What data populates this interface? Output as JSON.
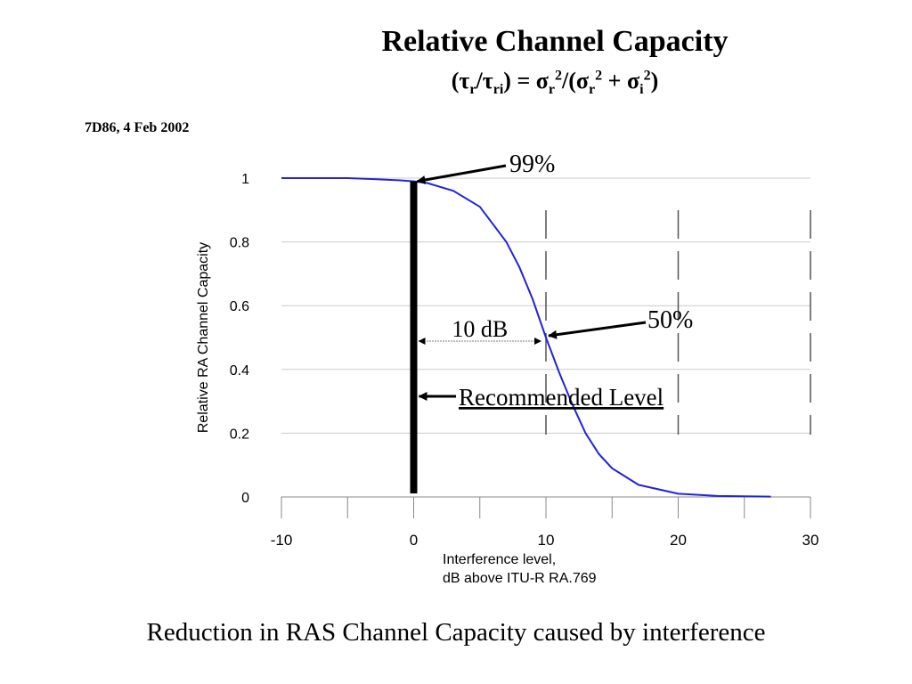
{
  "slide": {
    "title": "Relative Channel Capacity",
    "formula": {
      "parts": [
        "(τ",
        "r",
        "/τ",
        "ri",
        ") = σ",
        "r",
        "2",
        "/(σ",
        "r",
        "2",
        " + σ",
        "i",
        "2",
        ")"
      ]
    },
    "date_label": "7D86, 4 Feb 2002",
    "caption": "Reduction in RAS Channel Capacity caused by interference"
  },
  "chart_data": {
    "type": "line",
    "title": "",
    "xlabel_lines": [
      "Interference level,",
      "dB above ITU-R RA.769"
    ],
    "ylabel": "Relative RA Channel Capacity",
    "xlim": [
      -10,
      30
    ],
    "ylim": [
      0,
      1
    ],
    "x_ticks": [
      -10,
      0,
      10,
      20,
      30
    ],
    "x_tick_labels": [
      "-10",
      "0",
      "10",
      "20",
      "30"
    ],
    "x_minor_ticks": [
      -5,
      5,
      15,
      25
    ],
    "y_ticks": [
      0,
      0.2,
      0.4,
      0.6,
      0.8,
      1
    ],
    "y_tick_labels": [
      "0",
      "0.2",
      "0.4",
      "0.6",
      "0.8",
      "1"
    ],
    "grid": "horizontal",
    "vertical_dashed_lines_x": [
      10,
      20,
      30
    ],
    "series": [
      {
        "color": "#2222dd",
        "x": [
          -10,
          -5,
          -3,
          -1,
          0,
          1,
          3,
          5,
          7,
          8,
          9,
          10,
          11,
          12,
          13,
          14,
          15,
          17,
          20,
          23,
          25,
          27
        ],
        "y": [
          1,
          1,
          0.997,
          0.993,
          0.99,
          0.985,
          0.96,
          0.91,
          0.8,
          0.72,
          0.62,
          0.5,
          0.39,
          0.29,
          0.2,
          0.135,
          0.09,
          0.038,
          0.01,
          0.003,
          0.002,
          0.001
        ]
      }
    ],
    "recommended_level": {
      "x": 0,
      "label": "Recommended Level"
    },
    "annotations": {
      "pct99": {
        "label": "99%",
        "x": 0,
        "y": 0.99
      },
      "pct50": {
        "label": "50%",
        "x": 10,
        "y": 0.5
      },
      "gap": {
        "label": "10 dB",
        "x_from": 0,
        "x_to": 10
      }
    }
  }
}
